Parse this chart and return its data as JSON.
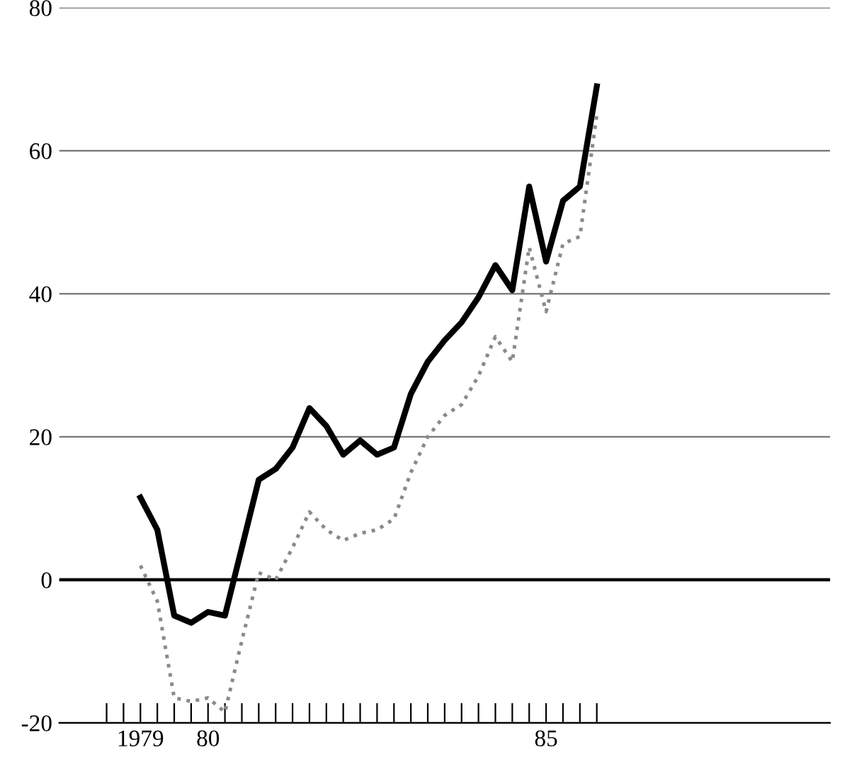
{
  "chart_data": {
    "type": "line",
    "x": [
      1979,
      1979.25,
      1979.5,
      1979.75,
      1980,
      1980.25,
      1980.5,
      1980.75,
      1981,
      1981.25,
      1981.5,
      1981.75,
      1982,
      1982.25,
      1982.5,
      1982.75,
      1983,
      1983.25,
      1983.5,
      1983.75,
      1984,
      1984.25,
      1984.5,
      1984.75,
      1985,
      1985.25,
      1985.5,
      1985.75
    ],
    "series": [
      {
        "color": "#000000",
        "line_style": "solid",
        "values": [
          11.5,
          7,
          -5,
          -6,
          -4.5,
          -5,
          4.5,
          14,
          15.5,
          18.5,
          24,
          21.5,
          17.5,
          19.5,
          17.5,
          18.5,
          26,
          30.5,
          33.5,
          36,
          39.5,
          44,
          40.5,
          55,
          44.5,
          53,
          55,
          69
        ]
      },
      {
        "color": "#8a8a8a",
        "line_style": "dotted",
        "values": [
          2,
          -3,
          -16.5,
          -17,
          -16.5,
          -18.5,
          -8.5,
          1,
          0,
          4.5,
          9.5,
          7,
          5.5,
          6.5,
          7,
          8.5,
          15,
          20,
          23,
          24.5,
          28.5,
          34,
          30.5,
          46.5,
          37.5,
          47,
          48,
          65
        ]
      }
    ],
    "xlim": [
      1977.8,
      1989.2
    ],
    "xticks": [
      {
        "value": 1978.5,
        "label": null
      },
      {
        "value": 1978.75,
        "label": null
      },
      {
        "value": 1979,
        "label": "1979"
      },
      {
        "value": 1979.25,
        "label": null
      },
      {
        "value": 1979.5,
        "label": null
      },
      {
        "value": 1979.75,
        "label": null
      },
      {
        "value": 1980,
        "label": "80"
      },
      {
        "value": 1980.25,
        "label": null
      },
      {
        "value": 1980.5,
        "label": null
      },
      {
        "value": 1980.75,
        "label": null
      },
      {
        "value": 1981,
        "label": null
      },
      {
        "value": 1981.25,
        "label": null
      },
      {
        "value": 1981.5,
        "label": null
      },
      {
        "value": 1981.75,
        "label": null
      },
      {
        "value": 1982,
        "label": null
      },
      {
        "value": 1982.25,
        "label": null
      },
      {
        "value": 1982.5,
        "label": null
      },
      {
        "value": 1982.75,
        "label": null
      },
      {
        "value": 1983,
        "label": null
      },
      {
        "value": 1983.25,
        "label": null
      },
      {
        "value": 1983.5,
        "label": null
      },
      {
        "value": 1983.75,
        "label": null
      },
      {
        "value": 1984,
        "label": null
      },
      {
        "value": 1984.25,
        "label": null
      },
      {
        "value": 1984.5,
        "label": null
      },
      {
        "value": 1984.75,
        "label": null
      },
      {
        "value": 1985,
        "label": "85"
      },
      {
        "value": 1985.25,
        "label": null
      },
      {
        "value": 1985.5,
        "label": null
      },
      {
        "value": 1985.75,
        "label": null
      }
    ],
    "ylim": [
      -20,
      80
    ],
    "yticks": [
      -20,
      0,
      20,
      40,
      60,
      80
    ],
    "grid": "y",
    "ref_lines": [
      {
        "axis": "y",
        "value": 0,
        "color": "#000000"
      }
    ]
  }
}
